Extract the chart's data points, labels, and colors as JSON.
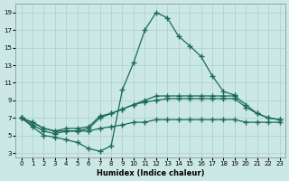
{
  "xlabel": "Humidex (Indice chaleur)",
  "bg_color": "#cce8e4",
  "line_color": "#1a6b5a",
  "grid_color": "#aed4ce",
  "xlim": [
    -0.5,
    23.5
  ],
  "ylim": [
    2.5,
    20
  ],
  "xticks": [
    0,
    1,
    2,
    3,
    4,
    5,
    6,
    7,
    8,
    9,
    10,
    11,
    12,
    13,
    14,
    15,
    16,
    17,
    18,
    19,
    20,
    21,
    22,
    23
  ],
  "yticks": [
    3,
    5,
    7,
    9,
    11,
    13,
    15,
    17,
    19
  ],
  "line1_x": [
    0,
    1,
    2,
    3,
    4,
    5,
    6,
    7,
    8,
    9,
    10,
    11,
    12,
    13,
    14,
    15,
    16,
    17,
    18,
    19,
    20,
    21,
    22,
    23
  ],
  "line1_y": [
    7.0,
    6.0,
    5.0,
    4.8,
    4.5,
    4.2,
    3.5,
    3.2,
    3.8,
    10.2,
    13.3,
    17.0,
    19.0,
    18.4,
    16.3,
    15.2,
    14.0,
    11.8,
    10.0,
    9.6,
    null,
    null,
    null,
    null
  ],
  "line2_x": [
    0,
    1,
    2,
    3,
    4,
    5,
    6,
    7,
    8,
    9,
    10,
    11,
    12,
    13,
    14,
    15,
    16,
    17,
    18,
    19,
    20,
    21,
    22,
    23
  ],
  "line2_y": [
    7.0,
    6.2,
    5.5,
    5.2,
    5.5,
    5.5,
    5.8,
    7.0,
    7.5,
    8.0,
    8.5,
    9.0,
    9.5,
    9.5,
    9.5,
    9.5,
    9.5,
    9.5,
    9.5,
    9.5,
    8.5,
    7.5,
    7.0,
    6.8
  ],
  "line3_x": [
    0,
    1,
    2,
    3,
    4,
    5,
    6,
    7,
    8,
    9,
    10,
    11,
    12,
    13,
    14,
    15,
    16,
    17,
    18,
    19,
    20,
    21,
    22,
    23
  ],
  "line3_y": [
    7.0,
    6.5,
    5.8,
    5.5,
    5.8,
    5.8,
    6.0,
    7.2,
    7.5,
    8.0,
    8.5,
    8.8,
    9.0,
    9.2,
    9.2,
    9.2,
    9.2,
    9.2,
    9.2,
    9.2,
    8.2,
    7.5,
    7.0,
    6.8
  ],
  "line4_x": [
    0,
    1,
    2,
    3,
    4,
    5,
    6,
    7,
    8,
    9,
    10,
    11,
    12,
    13,
    14,
    15,
    16,
    17,
    18,
    19,
    20,
    21,
    22,
    23
  ],
  "line4_y": [
    7.0,
    6.5,
    5.8,
    5.5,
    5.5,
    5.5,
    5.5,
    5.8,
    6.0,
    6.2,
    6.5,
    6.5,
    6.8,
    6.8,
    6.8,
    6.8,
    6.8,
    6.8,
    6.8,
    6.8,
    6.5,
    6.5,
    6.5,
    6.5
  ]
}
